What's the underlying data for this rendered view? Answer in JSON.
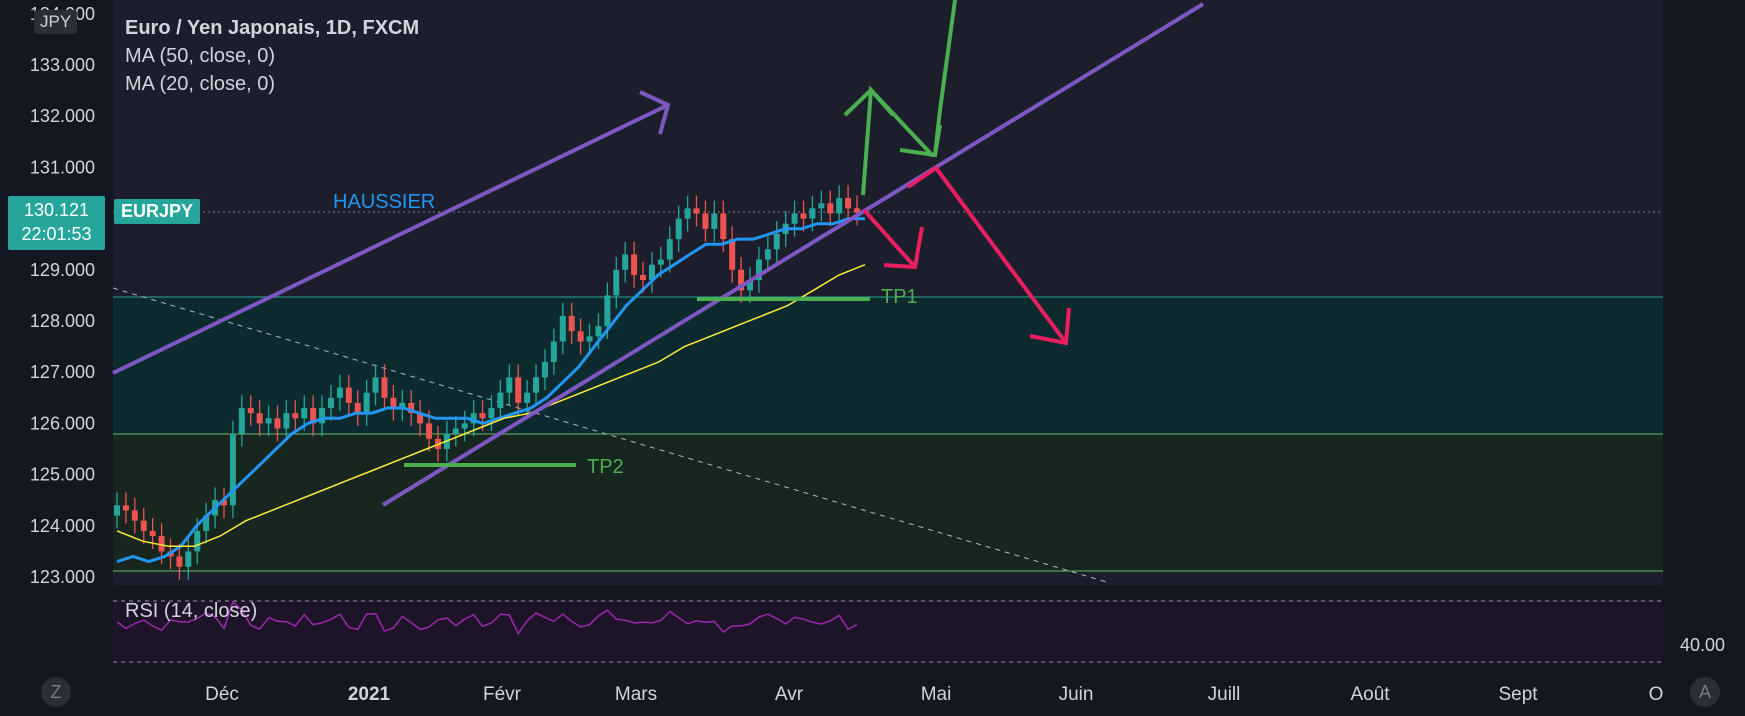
{
  "legend": {
    "title": "Euro / Yen Japonais, 1D, FXCM",
    "ma50": "MA (50, close, 0)",
    "ma20": "MA (20, close, 0)"
  },
  "currency_badge": "JPY",
  "last_price": {
    "value": "130.121",
    "countdown": "22:01:53"
  },
  "symbol": "EURJPY",
  "rsi": {
    "label": "RSI (14, close)",
    "level": "40.00"
  },
  "buttons": {
    "left": "Z",
    "right": "A"
  },
  "colors": {
    "up": "#26a69a",
    "down": "#ef5350",
    "ma20": "#2196f3",
    "ma50": "#ffeb3b",
    "trend": "#7e57c2",
    "bull": "#4caf50",
    "bear": "#e91e63",
    "rsi": "#9c27b0"
  },
  "chart_data": {
    "type": "line",
    "title": "Euro / Yen Japonais, 1D, FXCM",
    "y_ticks": [
      "123.000",
      "124.000",
      "125.000",
      "126.000",
      "127.000",
      "128.000",
      "129.000",
      "130.000",
      "131.000",
      "132.000",
      "133.000",
      "134.000"
    ],
    "y_top_tick_partial": "134.000",
    "ylim": [
      122.9,
      134.3
    ],
    "x_ticks": [
      "Déc",
      "2021",
      "Févr",
      "Mars",
      "Avr",
      "Mai",
      "Juin",
      "Juill",
      "Août",
      "Sept",
      "O"
    ],
    "annotations": {
      "haussier": "HAUSSIER",
      "tp1": "TP1",
      "tp2": "TP2"
    },
    "zones": [
      {
        "name": "upper-zone",
        "from": 125.8,
        "to": 128.5
      },
      {
        "name": "lower-zone",
        "from": 123.2,
        "to": 125.8
      }
    ],
    "series": [
      {
        "name": "EURJPY",
        "values": [
          124.4,
          124.3,
          124.1,
          123.9,
          123.8,
          123.5,
          123.4,
          123.2,
          123.5,
          123.9,
          124.2,
          124.5,
          124.4,
          125.8,
          126.3,
          126.2,
          126.0,
          126.1,
          125.9,
          126.2,
          126.1,
          126.3,
          126.0,
          126.3,
          126.5,
          126.7,
          126.4,
          126.2,
          126.6,
          126.9,
          126.5,
          126.3,
          126.4,
          126.2,
          126.0,
          125.7,
          125.5,
          125.8,
          125.9,
          126.0,
          126.2,
          126.1,
          126.3,
          126.6,
          126.9,
          126.4,
          126.6,
          126.9,
          127.2,
          127.6,
          128.1,
          127.8,
          127.6,
          127.7,
          127.9,
          128.5,
          129.0,
          129.3,
          128.9,
          128.8,
          129.1,
          129.2,
          129.6,
          130.0,
          130.2,
          130.1,
          129.8,
          130.1,
          129.6,
          129.0,
          128.6,
          128.8,
          129.2,
          129.4,
          129.7,
          129.9,
          130.1,
          130.0,
          130.2,
          130.3,
          130.1,
          130.4,
          130.2,
          130.12
        ]
      },
      {
        "name": "MA (20, close, 0)",
        "values": [
          123.3,
          123.4,
          123.3,
          123.4,
          123.6,
          124.0,
          124.3,
          124.6,
          124.9,
          125.2,
          125.5,
          125.8,
          126.0,
          126.1,
          126.1,
          126.2,
          126.2,
          126.3,
          126.3,
          126.2,
          126.1,
          126.1,
          126.1,
          126.0,
          126.1,
          126.2,
          126.3,
          126.5,
          126.8,
          127.1,
          127.5,
          127.9,
          128.3,
          128.6,
          128.9,
          129.1,
          129.3,
          129.5,
          129.5,
          129.6,
          129.6,
          129.7,
          129.8,
          129.8,
          129.9,
          129.9,
          130.0,
          130.0
        ]
      },
      {
        "name": "MA (50, close, 0)",
        "values": [
          123.9,
          123.7,
          123.6,
          123.6,
          123.8,
          124.1,
          124.3,
          124.5,
          124.7,
          124.9,
          125.1,
          125.3,
          125.5,
          125.7,
          125.9,
          126.1,
          126.2,
          126.4,
          126.6,
          126.8,
          127.0,
          127.2,
          127.5,
          127.7,
          127.9,
          128.1,
          128.3,
          128.6,
          128.9,
          129.1
        ]
      }
    ]
  }
}
